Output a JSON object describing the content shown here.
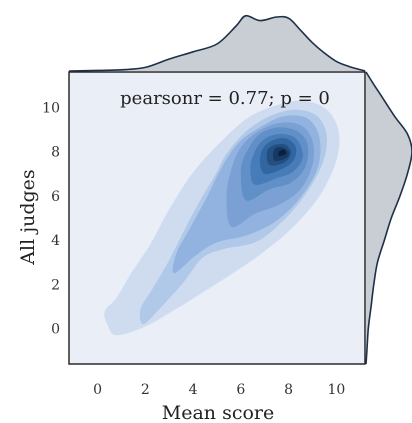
{
  "chart_data": {
    "type": "kde_joint",
    "xlabel": "Mean score",
    "ylabel": "All judges",
    "annotation": "pearsonr = 0.77; p = 0",
    "xlim": [
      -1.2,
      11.2
    ],
    "ylim": [
      -1.6,
      11.6
    ],
    "xticks": [
      0,
      2,
      4,
      6,
      8,
      10
    ],
    "yticks": [
      0,
      2,
      4,
      6,
      8,
      10
    ],
    "joint_density_levels": [
      {
        "level": 1,
        "color": "#cfdcf0",
        "path": [
          [
            0.4,
            0.2
          ],
          [
            0.8,
            -0.3
          ],
          [
            2.0,
            0.1
          ],
          [
            3.3,
            0.9
          ],
          [
            4.5,
            1.7
          ],
          [
            5.8,
            2.6
          ],
          [
            7.0,
            3.5
          ],
          [
            8.2,
            4.6
          ],
          [
            9.3,
            6.0
          ],
          [
            10.0,
            7.6
          ],
          [
            10.1,
            8.9
          ],
          [
            9.6,
            9.9
          ],
          [
            8.6,
            10.3
          ],
          [
            7.5,
            10.1
          ],
          [
            6.4,
            9.6
          ],
          [
            5.4,
            8.7
          ],
          [
            4.1,
            7.2
          ],
          [
            3.0,
            5.4
          ],
          [
            2.2,
            3.8
          ],
          [
            1.4,
            2.5
          ],
          [
            0.8,
            1.4
          ],
          [
            0.3,
            0.8
          ]
        ]
      },
      {
        "level": 2,
        "color": "#b1c9e8",
        "path": [
          [
            1.9,
            0.2
          ],
          [
            2.6,
            0.9
          ],
          [
            3.6,
            2.1
          ],
          [
            4.4,
            3.2
          ],
          [
            5.3,
            3.6
          ],
          [
            6.6,
            3.9
          ],
          [
            7.6,
            4.7
          ],
          [
            8.6,
            5.9
          ],
          [
            9.4,
            7.4
          ],
          [
            9.6,
            8.7
          ],
          [
            9.2,
            9.6
          ],
          [
            8.3,
            9.9
          ],
          [
            7.2,
            9.6
          ],
          [
            6.2,
            8.9
          ],
          [
            5.4,
            7.9
          ],
          [
            4.9,
            6.9
          ],
          [
            4.4,
            6.0
          ],
          [
            3.7,
            4.6
          ],
          [
            3.0,
            3.1
          ],
          [
            2.3,
            1.8
          ],
          [
            1.8,
            0.9
          ]
        ]
      },
      {
        "level": 3,
        "color": "#92b3df",
        "path": [
          [
            3.2,
            2.5
          ],
          [
            4.1,
            3.3
          ],
          [
            5.0,
            3.9
          ],
          [
            6.2,
            4.2
          ],
          [
            7.4,
            4.8
          ],
          [
            8.4,
            5.8
          ],
          [
            9.2,
            7.2
          ],
          [
            9.3,
            8.6
          ],
          [
            8.8,
            9.5
          ],
          [
            7.8,
            9.6
          ],
          [
            6.8,
            9.1
          ],
          [
            5.9,
            8.4
          ],
          [
            5.2,
            7.3
          ],
          [
            4.6,
            6.0
          ],
          [
            3.9,
            4.6
          ],
          [
            3.3,
            3.4
          ]
        ]
      },
      {
        "level": 4,
        "color": "#7ba1d4",
        "path": [
          [
            5.6,
            4.6
          ],
          [
            6.6,
            5.2
          ],
          [
            7.6,
            5.6
          ],
          [
            8.5,
            6.3
          ],
          [
            9.0,
            7.4
          ],
          [
            9.0,
            8.5
          ],
          [
            8.5,
            9.2
          ],
          [
            7.6,
            9.3
          ],
          [
            6.7,
            8.9
          ],
          [
            6.0,
            8.2
          ],
          [
            5.6,
            7.2
          ],
          [
            5.4,
            6.0
          ]
        ]
      },
      {
        "level": 5,
        "color": "#6190c9",
        "path": [
          [
            6.2,
            5.8
          ],
          [
            7.2,
            6.3
          ],
          [
            8.1,
            6.6
          ],
          [
            8.7,
            7.3
          ],
          [
            8.8,
            8.3
          ],
          [
            8.4,
            8.9
          ],
          [
            7.6,
            9.1
          ],
          [
            6.8,
            8.8
          ],
          [
            6.3,
            8.1
          ],
          [
            6.0,
            7.2
          ]
        ]
      },
      {
        "level": 6,
        "color": "#477cb8",
        "path": [
          [
            6.6,
            6.5
          ],
          [
            7.5,
            6.8
          ],
          [
            8.2,
            7.1
          ],
          [
            8.6,
            7.8
          ],
          [
            8.3,
            8.6
          ],
          [
            7.6,
            8.8
          ],
          [
            6.9,
            8.5
          ],
          [
            6.5,
            7.8
          ],
          [
            6.4,
            7.1
          ]
        ]
      },
      {
        "level": 7,
        "color": "#3266a0",
        "path": [
          [
            7.0,
            7.0
          ],
          [
            7.7,
            7.2
          ],
          [
            8.2,
            7.6
          ],
          [
            8.3,
            8.2
          ],
          [
            7.9,
            8.6
          ],
          [
            7.3,
            8.5
          ],
          [
            6.9,
            8.1
          ],
          [
            6.8,
            7.5
          ]
        ]
      },
      {
        "level": 8,
        "color": "#234f82",
        "path": [
          [
            7.2,
            7.4
          ],
          [
            7.8,
            7.5
          ],
          [
            8.1,
            7.9
          ],
          [
            7.9,
            8.3
          ],
          [
            7.4,
            8.3
          ],
          [
            7.1,
            8.0
          ]
        ]
      },
      {
        "level": 9,
        "color": "#173a63",
        "path": [
          [
            7.4,
            7.6
          ],
          [
            7.9,
            7.7
          ],
          [
            8.0,
            8.0
          ],
          [
            7.7,
            8.2
          ],
          [
            7.4,
            8.1
          ]
        ]
      },
      {
        "level": 10,
        "color": "#0b2040",
        "path": [
          [
            7.6,
            7.8
          ],
          [
            7.9,
            7.9
          ],
          [
            7.8,
            8.1
          ],
          [
            7.6,
            8.0
          ]
        ]
      }
    ],
    "x_marginal_density": [
      [
        -1.2,
        0.0
      ],
      [
        0.0,
        0.01
      ],
      [
        1.0,
        0.02
      ],
      [
        2.0,
        0.06
      ],
      [
        3.0,
        0.2
      ],
      [
        4.0,
        0.32
      ],
      [
        5.0,
        0.45
      ],
      [
        5.8,
        0.75
      ],
      [
        6.2,
        0.92
      ],
      [
        6.8,
        0.84
      ],
      [
        7.5,
        0.9
      ],
      [
        8.0,
        0.88
      ],
      [
        8.5,
        0.68
      ],
      [
        9.0,
        0.47
      ],
      [
        9.5,
        0.3
      ],
      [
        10.0,
        0.16
      ],
      [
        10.5,
        0.08
      ],
      [
        11.2,
        0.0
      ]
    ],
    "y_marginal_density": [
      [
        -1.6,
        0.0
      ],
      [
        -1.0,
        0.02
      ],
      [
        0.0,
        0.05
      ],
      [
        1.0,
        0.11
      ],
      [
        2.0,
        0.17
      ],
      [
        3.0,
        0.25
      ],
      [
        4.0,
        0.4
      ],
      [
        5.0,
        0.55
      ],
      [
        6.0,
        0.74
      ],
      [
        7.0,
        0.9
      ],
      [
        8.0,
        1.0
      ],
      [
        8.8,
        0.9
      ],
      [
        9.6,
        0.62
      ],
      [
        10.5,
        0.34
      ],
      [
        11.0,
        0.18
      ],
      [
        11.6,
        0.0
      ]
    ]
  },
  "colors": {
    "axes_background": "#eaeef7",
    "axes_border": "#2a2a2a",
    "marginal_fill": "#c9cdd4",
    "marginal_line": "#1e3048"
  }
}
